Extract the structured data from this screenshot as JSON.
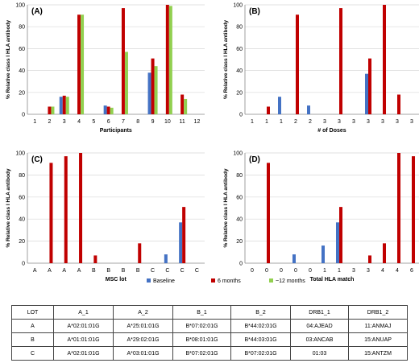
{
  "colors": {
    "baseline": "#4472C4",
    "six_months": "#C00000",
    "twelve_months": "#92D050",
    "grid": "#d9d9d9",
    "axis": "#888888"
  },
  "legend": {
    "items": [
      {
        "label": "Baseline",
        "color": "#4472C4"
      },
      {
        "label": "6 months",
        "color": "#C00000"
      },
      {
        "label": "~12 months",
        "color": "#92D050"
      }
    ]
  },
  "chart_data": [
    {
      "type": "bar",
      "panel_label": "(A)",
      "xlabel": "Participants",
      "ylabel": "% Relative class I HLA antibody",
      "ylim": [
        0,
        100
      ],
      "yticks": [
        0,
        20,
        40,
        60,
        80,
        100
      ],
      "grid": true,
      "categories": [
        "1",
        "2",
        "3",
        "4",
        "5",
        "6",
        "7",
        "8",
        "9",
        "10",
        "11",
        "12"
      ],
      "series": [
        {
          "name": "Baseline",
          "values": [
            0,
            0,
            16,
            0,
            0,
            8,
            0,
            0,
            38,
            0,
            0,
            0
          ]
        },
        {
          "name": "6 months",
          "values": [
            0,
            7,
            17,
            91,
            0,
            7,
            97,
            0,
            51,
            100,
            18,
            0
          ]
        },
        {
          "name": "~12 months",
          "values": [
            0,
            7,
            16,
            91,
            0,
            6,
            57,
            0,
            44,
            99,
            14,
            0
          ]
        }
      ]
    },
    {
      "type": "bar",
      "panel_label": "(B)",
      "xlabel": "# of Doses",
      "ylabel": "% Relative class I HLA antibody",
      "ylim": [
        0,
        100
      ],
      "yticks": [
        0,
        20,
        40,
        60,
        80,
        100
      ],
      "grid": true,
      "categories": [
        "1",
        "1",
        "1",
        "2",
        "2",
        "3",
        "3",
        "3",
        "3",
        "3",
        "3",
        "3"
      ],
      "series": [
        {
          "name": "Baseline",
          "values": [
            0,
            0,
            16,
            0,
            8,
            0,
            0,
            0,
            37,
            0,
            0,
            0
          ]
        },
        {
          "name": "6 months",
          "values": [
            0,
            7,
            0,
            91,
            0,
            0,
            97,
            0,
            51,
            100,
            18,
            0
          ]
        }
      ]
    },
    {
      "type": "bar",
      "panel_label": "(C)",
      "xlabel": "MSC lot",
      "ylabel": "% Relative class I HLA antibody",
      "ylim": [
        0,
        100
      ],
      "yticks": [
        0,
        20,
        40,
        60,
        80,
        100
      ],
      "grid": true,
      "categories": [
        "A",
        "A",
        "A",
        "A",
        "B",
        "B",
        "B",
        "B",
        "C",
        "C",
        "C",
        "C"
      ],
      "series": [
        {
          "name": "Baseline",
          "values": [
            0,
            0,
            0,
            0,
            0,
            0,
            0,
            0,
            0,
            8,
            37,
            0
          ]
        },
        {
          "name": "6 months",
          "values": [
            0,
            91,
            97,
            100,
            7,
            0,
            0,
            18,
            0,
            0,
            51,
            0
          ]
        }
      ]
    },
    {
      "type": "bar",
      "panel_label": "(D)",
      "xlabel": "Total HLA match",
      "ylabel": "% Relative class I HLA antibody",
      "ylim": [
        0,
        100
      ],
      "yticks": [
        0,
        20,
        40,
        60,
        80,
        100
      ],
      "grid": true,
      "categories": [
        "0",
        "0",
        "0",
        "0",
        "0",
        "1",
        "1",
        "3",
        "3",
        "4",
        "4",
        "6"
      ],
      "series": [
        {
          "name": "Baseline",
          "values": [
            0,
            0,
            0,
            8,
            0,
            16,
            37,
            0,
            0,
            0,
            0,
            0
          ]
        },
        {
          "name": "6 months",
          "values": [
            0,
            91,
            0,
            0,
            0,
            0,
            51,
            0,
            7,
            18,
            100,
            97
          ]
        }
      ]
    }
  ],
  "table": {
    "headers": [
      "LOT",
      "A_1",
      "A_2",
      "B_1",
      "B_2",
      "DRB1_1",
      "DRB1_2"
    ],
    "rows": [
      [
        "A",
        "A*02:01:01G",
        "A*25:01:01G",
        "B*07:02:01G",
        "B*44:02:01G",
        "04:AJEAD",
        "11:ANMAJ"
      ],
      [
        "B",
        "A*01:01:01G",
        "A*29:02:01G",
        "B*08:01:01G",
        "B*44:03:01G",
        "03:ANCAB",
        "15:ANUAP"
      ],
      [
        "C",
        "A*02:01:01G",
        "A*03:01:01G",
        "B*07:02:01G",
        "B*07:02:01G",
        "01:03",
        "15:ANTZM"
      ]
    ]
  }
}
